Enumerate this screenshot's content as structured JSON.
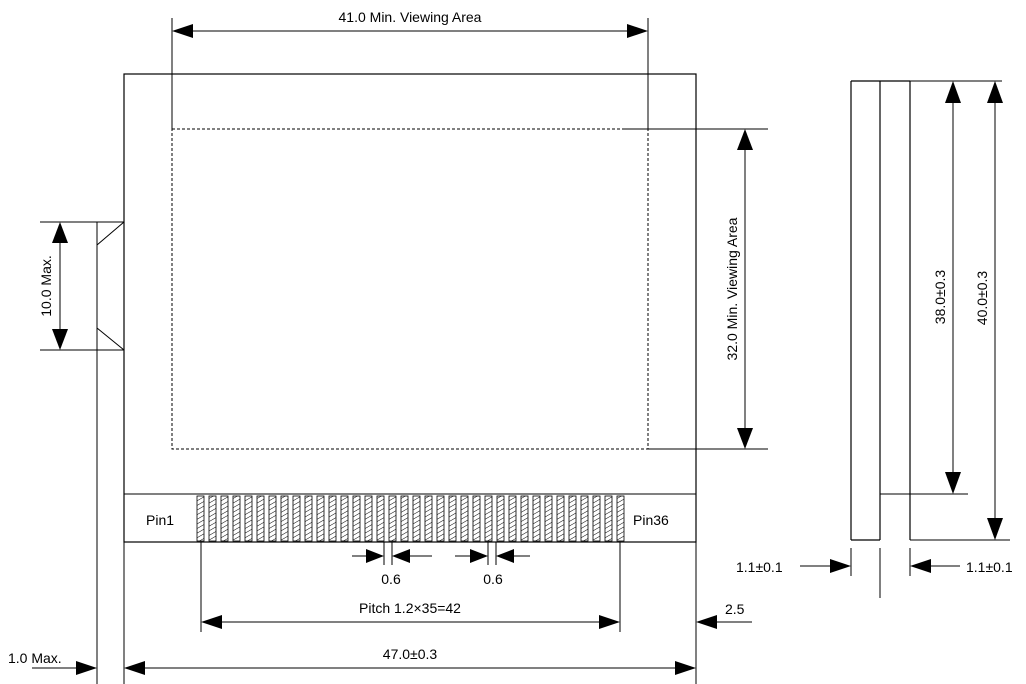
{
  "dimensions": {
    "viewing_width": "41.0 Min. Viewing Area",
    "viewing_height": "32.0 Min. Viewing Area",
    "fpc_width_max": "10.0 Max.",
    "side_height_inner": "38.0±0.3",
    "side_height_outer": "40.0±0.3",
    "pin_pitch": "Pitch 1.2×35=42",
    "overall_width": "47.0±0.3",
    "pad_width_left": "0.6",
    "pad_width_right": "0.6",
    "edge_offset": "2.5",
    "fpc_thickness_max": "1.0 Max.",
    "glass_thickness_left": "1.1±0.1",
    "glass_thickness_right": "1.1±0.1"
  },
  "pins": {
    "first_label": "Pin1",
    "last_label": "Pin36",
    "count": 36
  },
  "colors": {
    "line": "#000000",
    "background": "#ffffff"
  }
}
